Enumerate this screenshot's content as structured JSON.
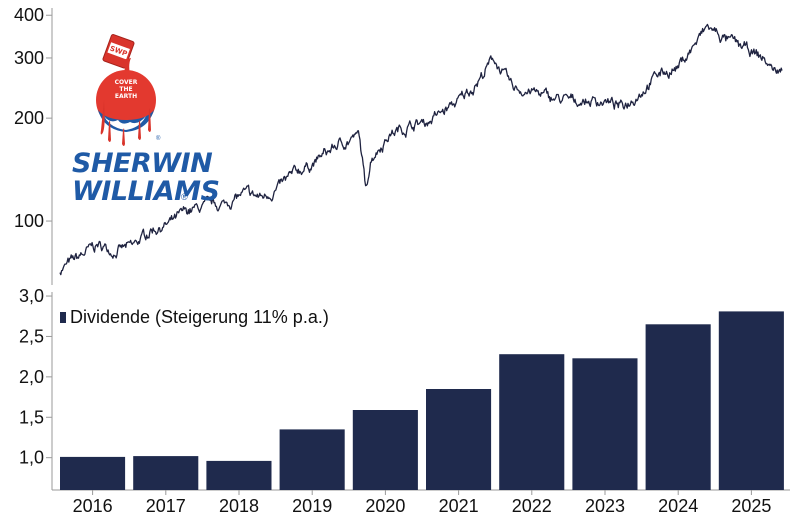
{
  "chart_data": [
    {
      "type": "line",
      "title": "",
      "xlabel": "",
      "ylabel": "",
      "yscale": "log",
      "ylim": [
        65,
        420
      ],
      "yticks": [
        100,
        200,
        300,
        400
      ],
      "x": [
        "2016-01",
        "2016-04",
        "2016-07",
        "2016-10",
        "2017-01",
        "2017-04",
        "2017-07",
        "2017-10",
        "2018-01",
        "2018-04",
        "2018-07",
        "2018-10",
        "2019-01",
        "2019-04",
        "2019-07",
        "2019-10",
        "2020-01",
        "2020-02",
        "2020-03",
        "2020-04",
        "2020-07",
        "2020-10",
        "2021-01",
        "2021-04",
        "2021-07",
        "2021-10",
        "2021-12",
        "2022-03",
        "2022-06",
        "2022-09",
        "2022-12",
        "2023-03",
        "2023-06",
        "2023-09",
        "2023-12",
        "2024-03",
        "2024-06",
        "2024-09",
        "2024-11",
        "2025-02",
        "2025-05",
        "2025-08",
        "2025-10"
      ],
      "values": [
        72,
        78,
        85,
        82,
        84,
        95,
        98,
        107,
        110,
        112,
        120,
        117,
        126,
        140,
        150,
        165,
        175,
        177,
        125,
        155,
        180,
        190,
        195,
        210,
        230,
        265,
        300,
        245,
        240,
        230,
        225,
        225,
        225,
        215,
        240,
        270,
        280,
        330,
        370,
        340,
        320,
        300,
        275
      ],
      "grid": false
    },
    {
      "type": "bar",
      "title": "",
      "categories": [
        "2016",
        "2017",
        "2018",
        "2019",
        "2020",
        "2021",
        "2022",
        "2023",
        "2024",
        "2025"
      ],
      "series": [
        {
          "name": "Dividende (Steigerung 11% p.a.)",
          "values": [
            1.01,
            1.02,
            0.96,
            1.35,
            1.59,
            1.85,
            2.28,
            2.23,
            2.65,
            2.81
          ]
        }
      ],
      "ylim": [
        0.6,
        3.05
      ],
      "yticks": [
        "1,0",
        "1,5",
        "2,0",
        "2,5",
        "3,0"
      ],
      "ytick_values": [
        1.0,
        1.5,
        2.0,
        2.5,
        3.0
      ],
      "legend_position": "top-left",
      "grid": false
    }
  ],
  "colors": {
    "line": "#1f2340",
    "bar": "#1f2a4d",
    "axis": "#9a9a9a"
  },
  "logo": {
    "can_label": "SWP",
    "drop_lines": [
      "COVER",
      "THE",
      "EARTH"
    ],
    "brand_lines": [
      "SHERWIN",
      "WILLIAMS"
    ],
    "mark": "®"
  }
}
